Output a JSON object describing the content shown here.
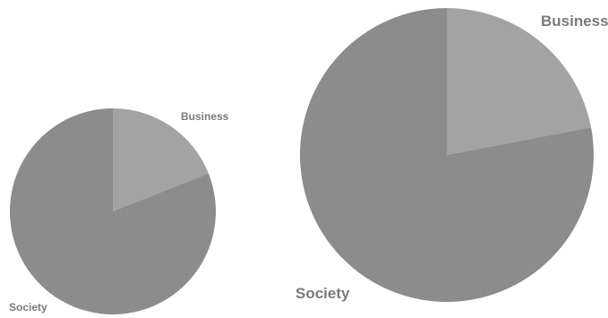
{
  "chart_data": [
    {
      "type": "pie",
      "categories": [
        "Business",
        "Society"
      ],
      "values": [
        19,
        81
      ],
      "colors": [
        "#a3a3a3",
        "#8c8c8c"
      ]
    },
    {
      "type": "pie",
      "categories": [
        "Business",
        "Society"
      ],
      "values": [
        22,
        78
      ],
      "colors": [
        "#a3a3a3",
        "#8c8c8c"
      ]
    }
  ]
}
